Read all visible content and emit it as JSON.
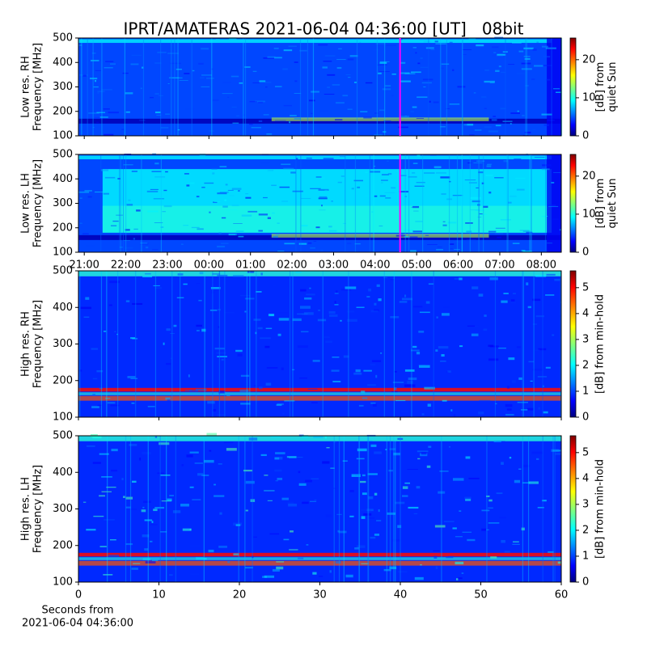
{
  "title": "IPRT/AMATERAS 2021-06-04 04:36:00 [UT]   08bit",
  "chart_data": [
    {
      "type": "heatmap",
      "ylabel": [
        "Low res. RH",
        "Frequency [MHz]"
      ],
      "ylim": [
        100,
        500
      ],
      "yticks": [
        100,
        200,
        300,
        400,
        500
      ],
      "xlim": [
        20.86,
        32.48
      ],
      "xticks": [
        {
          "value": 21,
          "label": "21:00"
        },
        {
          "value": 22,
          "label": "22:00"
        },
        {
          "value": 23,
          "label": "23:00"
        },
        {
          "value": 24,
          "label": "00:00"
        },
        {
          "value": 25,
          "label": "01:00"
        },
        {
          "value": 26,
          "label": "02:00"
        },
        {
          "value": 27,
          "label": "03:00"
        },
        {
          "value": 28,
          "label": "04:00"
        },
        {
          "value": 29,
          "label": "05:00"
        },
        {
          "value": 30,
          "label": "06:00"
        },
        {
          "value": 31,
          "label": "07:00"
        },
        {
          "value": 32,
          "label": "08:00"
        }
      ],
      "show_xticklabels": false,
      "marker_x": 28.6,
      "marker_color": "#ff00ff",
      "colormap": "jet",
      "clim": [
        0,
        25.7
      ],
      "cticks": [
        0,
        10,
        20
      ],
      "clabel": [
        "[dB] from",
        "quiet Sun"
      ]
    },
    {
      "type": "heatmap",
      "ylabel": [
        "Low res. LH",
        "Frequency [MHz]"
      ],
      "ylim": [
        100,
        500
      ],
      "yticks": [
        100,
        200,
        300,
        400,
        500
      ],
      "xlim": [
        20.86,
        32.48
      ],
      "xticks": [
        {
          "value": 21,
          "label": "21:00"
        },
        {
          "value": 22,
          "label": "22:00"
        },
        {
          "value": 23,
          "label": "23:00"
        },
        {
          "value": 24,
          "label": "00:00"
        },
        {
          "value": 25,
          "label": "01:00"
        },
        {
          "value": 26,
          "label": "02:00"
        },
        {
          "value": 27,
          "label": "03:00"
        },
        {
          "value": 28,
          "label": "04:00"
        },
        {
          "value": 29,
          "label": "05:00"
        },
        {
          "value": 30,
          "label": "06:00"
        },
        {
          "value": 31,
          "label": "07:00"
        },
        {
          "value": 32,
          "label": "08:00"
        }
      ],
      "show_xticklabels": true,
      "marker_x": 28.6,
      "marker_color": "#ff00ff",
      "colormap": "jet",
      "clim": [
        0,
        25.7
      ],
      "cticks": [
        0,
        10,
        20
      ],
      "clabel": [
        "[dB] from",
        "quiet Sun"
      ]
    },
    {
      "type": "heatmap",
      "ylabel": [
        "High res. RH",
        "Frequency [MHz]"
      ],
      "ylim": [
        100,
        500
      ],
      "yticks": [
        100,
        200,
        300,
        400,
        500
      ],
      "xlim": [
        0,
        60
      ],
      "xticks": [
        0,
        10,
        20,
        30,
        40,
        50,
        60
      ],
      "show_xticklabels": false,
      "colormap": "jet",
      "clim": [
        0,
        5.65
      ],
      "cticks": [
        0,
        1,
        2,
        3,
        4,
        5
      ],
      "clabel": [
        "[dB] from min-hold"
      ]
    },
    {
      "type": "heatmap",
      "ylabel": [
        "High res. LH",
        "Frequency [MHz]"
      ],
      "ylim": [
        100,
        500
      ],
      "yticks": [
        100,
        200,
        300,
        400,
        500
      ],
      "xlim": [
        0,
        60
      ],
      "xticks": [
        0,
        10,
        20,
        30,
        40,
        50,
        60
      ],
      "show_xticklabels": true,
      "colormap": "jet",
      "clim": [
        0,
        5.65
      ],
      "cticks": [
        0,
        1,
        2,
        3,
        4,
        5
      ],
      "clabel": [
        "[dB] from min-hold"
      ],
      "xlabel": [
        "Seconds from",
        "2021-06-04 04:36:00"
      ]
    }
  ]
}
